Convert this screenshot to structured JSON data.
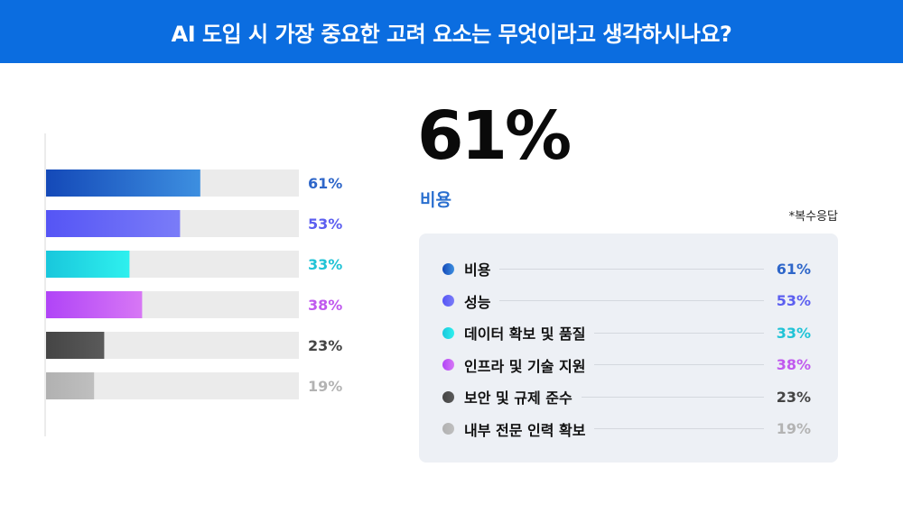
{
  "header": {
    "title": "AI 도입 시 가장 중요한 고려 요소는 무엇이라고 생각하시나요?"
  },
  "highlight": {
    "value": "61%",
    "label": "비용"
  },
  "note": "*복수응답",
  "colors": {
    "header_bg": "#0b6de0",
    "track": "#ebebeb",
    "highlight_label": "#2a6fcf"
  },
  "chart_data": {
    "type": "bar",
    "orientation": "horizontal",
    "xlim": [
      0,
      100
    ],
    "categories": [
      "비용",
      "성능",
      "데이터 확보 및 품질",
      "인프라 및 기술 지원",
      "보안 및 규제 준수",
      "내부 전문 인력 확보"
    ],
    "values": [
      61,
      53,
      33,
      38,
      23,
      19
    ],
    "labels": [
      "61%",
      "53%",
      "33%",
      "38%",
      "23%",
      "19%"
    ],
    "colors": [
      {
        "start": "#1449b8",
        "end": "#3d8fe0",
        "text": "#2e66c9"
      },
      {
        "start": "#5555f5",
        "end": "#7a7cf8",
        "text": "#5c5ff0"
      },
      {
        "start": "#19c7dc",
        "end": "#2ff0ee",
        "text": "#21c3d6"
      },
      {
        "start": "#b044f7",
        "end": "#d777f5",
        "text": "#c059ee"
      },
      {
        "start": "#454545",
        "end": "#5a5a5a",
        "text": "#444444"
      },
      {
        "start": "#b1b1b1",
        "end": "#bfbfbf",
        "text": "#b3b3b3"
      }
    ]
  }
}
